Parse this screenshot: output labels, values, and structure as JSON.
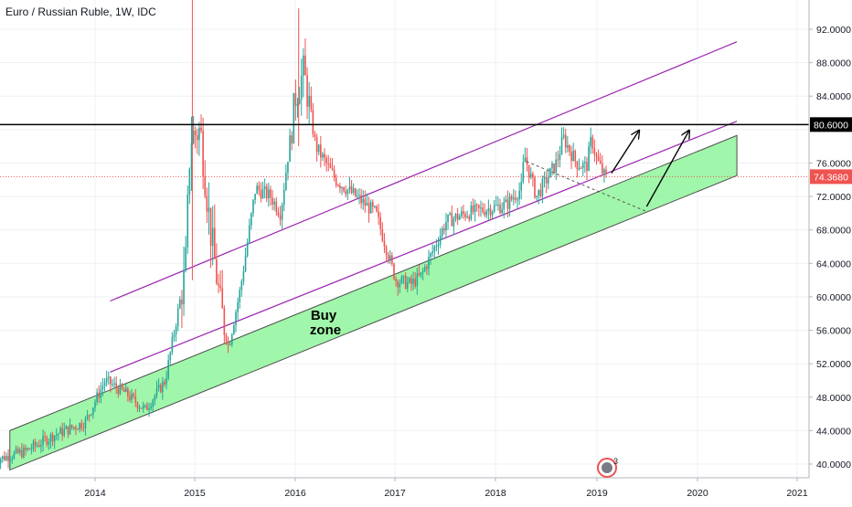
{
  "header": {
    "title": "Euro / Russian Ruble, 1W, IDC"
  },
  "chart_data": {
    "type": "candlestick",
    "title": "Euro / Russian Ruble, 1W, IDC",
    "symbol": "EURRUB",
    "interval": "1W",
    "source": "IDC",
    "x_ticks": [
      "2014",
      "2015",
      "2016",
      "2017",
      "2018",
      "2019",
      "2020",
      "2021"
    ],
    "y_ticks": [
      "40.0000",
      "44.0000",
      "48.0000",
      "52.0000",
      "56.0000",
      "60.0000",
      "64.0000",
      "68.0000",
      "72.0000",
      "76.0000",
      "84.0000",
      "88.0000",
      "92.0000"
    ],
    "ylim": [
      38.5,
      96.5
    ],
    "xlim": [
      2013.0,
      2021.0
    ],
    "grid": true,
    "colors": {
      "up": "#26a69a",
      "down": "#ef5350",
      "channel": "#9c27b0",
      "zone_fill": "#8ff59b",
      "zone_border": "#4d4d4d",
      "resistance": "#000000",
      "last_price_line": "#ef5350"
    },
    "series": [
      {
        "name": "close",
        "x": [
          2013.0,
          2013.3,
          2013.6,
          2013.9,
          2014.1,
          2014.3,
          2014.5,
          2014.7,
          2014.9,
          2014.95,
          2015.05,
          2015.15,
          2015.25,
          2015.33,
          2015.45,
          2015.6,
          2015.75,
          2015.85,
          2016.0,
          2016.08,
          2016.2,
          2016.4,
          2016.6,
          2016.8,
          2016.9,
          2017.0,
          2017.15,
          2017.25,
          2017.35,
          2017.5,
          2017.7,
          2017.9,
          2018.1,
          2018.25,
          2018.28,
          2018.4,
          2018.5,
          2018.6,
          2018.67,
          2018.8,
          2018.9,
          2018.95,
          2019.0,
          2019.08
        ],
        "y": [
          40.5,
          41.5,
          43.5,
          45.0,
          50.0,
          48.5,
          46.5,
          50.0,
          63.0,
          79.0,
          80.0,
          68.0,
          59.0,
          54.0,
          61.0,
          73.0,
          72.0,
          70.0,
          84.0,
          87.0,
          78.0,
          74.0,
          72.0,
          70.0,
          66.0,
          62.0,
          61.5,
          62.5,
          65.0,
          69.0,
          70.0,
          70.5,
          71.0,
          73.0,
          77.0,
          72.0,
          74.0,
          76.0,
          79.0,
          76.0,
          75.5,
          79.0,
          76.5,
          74.4
        ]
      }
    ],
    "annotations": {
      "last_price": "74.3680",
      "resistance_level": "80.6000",
      "zone_label": "Buy\nzone",
      "badge_count": "3"
    }
  }
}
